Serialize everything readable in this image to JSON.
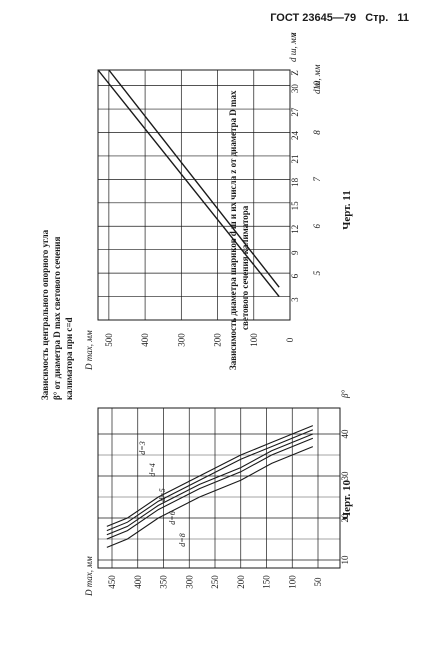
{
  "header": {
    "gost": "ГОСТ 23645—79",
    "page_label": "Стр.",
    "page_num": "11"
  },
  "fig10": {
    "caption": [
      "Зависимость центрального опорного угла",
      "β° от диаметра D max светового сечения",
      "калиматора при c=d"
    ],
    "fig_label": "Черт. 10",
    "y_axis_label": "D max, мм",
    "x_axis_label": "β°",
    "y_ticks": [
      "450",
      "400",
      "350",
      "300",
      "250",
      "200",
      "150",
      "100",
      "50"
    ],
    "x_ticks": [
      "10",
      "20",
      "30",
      "40"
    ],
    "curve_labels": [
      "d=3",
      "d=4",
      "d=5",
      "d=6",
      "d=8"
    ]
  },
  "fig11": {
    "caption": [
      "Зависимость диаметра шариков d ш и их числа z от диаметра D max",
      "светового сечения калиматора"
    ],
    "fig_label": "Черт. 11",
    "y_axis_label": "D max, мм",
    "top_axis_label": "z",
    "bottom_axis_label": "d ш, мм",
    "y_ticks": [
      "500",
      "400",
      "300",
      "200",
      "100",
      "0"
    ],
    "top_ticks": [
      "3",
      "6",
      "9",
      "12",
      "15",
      "18",
      "21",
      "24",
      "27",
      "30",
      "Z"
    ],
    "bottom_ticks": [
      "5",
      "6",
      "7",
      "8",
      "10"
    ],
    "line_labels": [
      "d ш, мм",
      "z"
    ]
  },
  "chart_data": [
    {
      "type": "line",
      "title": "Зависимость центрального опорного угла β° от диаметра D max светового сечения калиматора при c=d",
      "xlabel": "β°",
      "ylabel": "D max, мм",
      "x_ticks": [
        10,
        20,
        30,
        40
      ],
      "y_ticks": [
        50,
        100,
        150,
        200,
        250,
        300,
        350,
        400,
        450
      ],
      "xlim": [
        5,
        45
      ],
      "ylim": [
        30,
        470
      ],
      "grid": true,
      "series": [
        {
          "name": "d=3",
          "x": [
            18,
            20,
            25,
            30,
            35,
            38,
            42
          ],
          "y": [
            460,
            420,
            360,
            280,
            200,
            140,
            60
          ]
        },
        {
          "name": "d=4",
          "x": [
            17,
            19,
            24,
            29,
            34,
            37,
            41
          ],
          "y": [
            460,
            420,
            360,
            280,
            200,
            140,
            60
          ]
        },
        {
          "name": "d=5",
          "x": [
            16,
            18,
            23,
            28,
            32,
            36,
            40
          ],
          "y": [
            460,
            420,
            360,
            280,
            200,
            140,
            60
          ]
        },
        {
          "name": "d=6",
          "x": [
            15,
            17,
            22,
            27,
            31,
            35,
            39
          ],
          "y": [
            460,
            420,
            360,
            280,
            200,
            140,
            60
          ]
        },
        {
          "name": "d=8",
          "x": [
            13,
            15,
            20,
            25,
            29,
            33,
            37
          ],
          "y": [
            460,
            420,
            360,
            280,
            200,
            140,
            60
          ]
        }
      ]
    },
    {
      "type": "line",
      "title": "Зависимость диаметра шариков d ш и их числа z от диаметра D max светового сечения калиматора",
      "ylabel": "D max, мм",
      "xlabel": "z",
      "x_ticks": [
        3,
        6,
        9,
        12,
        15,
        18,
        21,
        24,
        27,
        30
      ],
      "y_ticks": [
        0,
        100,
        200,
        300,
        400,
        500
      ],
      "xlim": [
        0,
        32
      ],
      "ylim": [
        0,
        530
      ],
      "grid": true,
      "series": [
        {
          "name": "d ш, мм",
          "x": [
            3,
            32
          ],
          "y": [
            30,
            530
          ]
        },
        {
          "name": "z",
          "x": [
            4.2,
            32
          ],
          "y": [
            30,
            500
          ]
        }
      ]
    }
  ]
}
